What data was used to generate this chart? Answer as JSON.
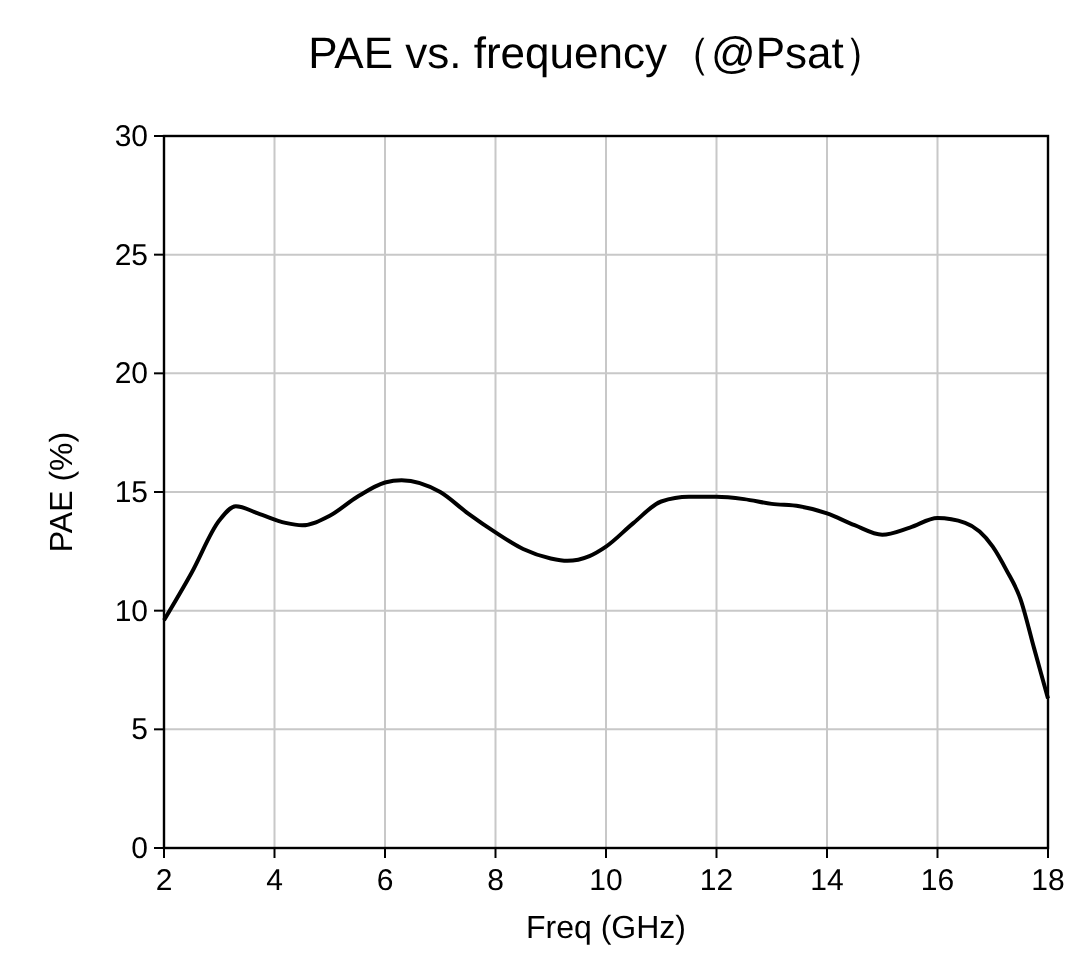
{
  "chart_data": {
    "type": "line",
    "title": "PAE vs. frequency（@Psat）",
    "xlabel": "Freq (GHz)",
    "ylabel": "PAE (%)",
    "x": [
      2,
      2.5,
      3,
      3.3,
      3.7,
      4.2,
      4.5,
      5,
      5.5,
      6,
      6.3,
      7,
      7.5,
      8,
      8.5,
      9,
      9.3,
      9.7,
      10,
      10.5,
      11,
      11.5,
      12,
      12.5,
      13,
      13.5,
      14,
      14.5,
      15,
      15.5,
      16,
      16.5,
      17,
      17.25,
      17.5,
      17.75,
      18
    ],
    "series": [
      {
        "color": "#000000",
        "values": [
          9.6,
          11.6,
          13.8,
          14.4,
          14.1,
          13.7,
          13.6,
          14.0,
          14.8,
          15.4,
          15.5,
          15.0,
          14.1,
          13.3,
          12.6,
          12.2,
          12.1,
          12.3,
          12.7,
          13.7,
          14.6,
          14.8,
          14.8,
          14.7,
          14.5,
          14.4,
          14.1,
          13.6,
          13.2,
          13.5,
          13.9,
          13.7,
          12.7,
          11.7,
          10.5,
          8.4,
          6.3
        ]
      }
    ],
    "xlim": [
      2,
      18
    ],
    "xticks": [
      2,
      4,
      6,
      8,
      10,
      12,
      14,
      16,
      18
    ],
    "ylim": [
      0,
      30
    ],
    "yticks": [
      0,
      5,
      10,
      15,
      20,
      25,
      30
    ],
    "grid": true,
    "marker": "none",
    "line_style": "solid"
  }
}
